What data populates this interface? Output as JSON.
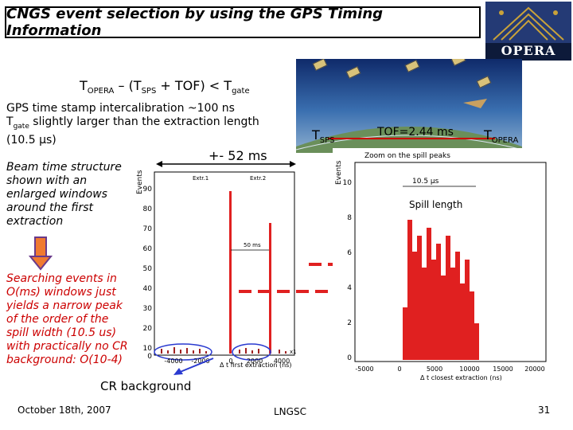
{
  "title": "CNGS event selection by using the GPS Timing Information",
  "logo_text": "OPERA",
  "formula": {
    "t": "T",
    "opera_sub": "OPERA",
    "dash": " – (T",
    "sps_sub": "SPS",
    "plus_tof": " + TOF) < T",
    "gate_sub": "gate"
  },
  "gps_text_line1": "GPS time stamp intercalibration ~100 ns",
  "gps_text_line2_a": "T",
  "gps_text_line2_sub": "gate",
  "gps_text_line2_b": " slightly larger than the extraction length",
  "gps_text_line3": "(10.5 μs)",
  "beam_text": [
    "Beam time structure",
    "shown with an",
    "enlarged windows",
    "around the first",
    "extraction"
  ],
  "search_text": [
    "Searching events in",
    "O(ms) windows just",
    "yields a narrow peak",
    "of the order of the",
    "spill width (10.5 us)",
    "with practically no CR",
    "background: O(10-4)"
  ],
  "cr_background": "CR background",
  "window_label": "+- 52 ms",
  "spill_length": "Spill length",
  "beam_labels": {
    "tsps": "T",
    "tsps_sub": "SPS",
    "tof": "TOF=2.44 ms",
    "topera": "T",
    "topera_sub": "OPERA"
  },
  "left_plot": {
    "ylabel": "Events",
    "xlabel": "Δ t first extraction (ns)",
    "yticks": [
      "90",
      "80",
      "70",
      "60",
      "50",
      "40",
      "30",
      "20",
      "10",
      "0"
    ],
    "xticks": [
      "-4000",
      "-2000",
      "0",
      "2000",
      "4000"
    ],
    "x10": "x10⁶",
    "extr1": "Extr.1",
    "extr2": "Extr.2",
    "ms50": "50 ms"
  },
  "right_plot": {
    "title": "Zoom on the spill peaks",
    "ylabel": "Events",
    "xlabel": "Δ t closest extraction (ns)",
    "yticks": [
      "10",
      "8",
      "6",
      "4",
      "2",
      "0"
    ],
    "xticks": [
      "-5000",
      "0",
      "5000",
      "10000",
      "15000",
      "20000"
    ],
    "annot": "10.5 μs"
  },
  "footer": {
    "date": "October 18th, 2007",
    "site": "LNGSC",
    "page": "31"
  },
  "colors": {
    "accent_red": "#cc0000",
    "bar_red": "#e02020",
    "arrow_blue": "#2a3ad0",
    "orange_arrow": "#f07a30"
  }
}
